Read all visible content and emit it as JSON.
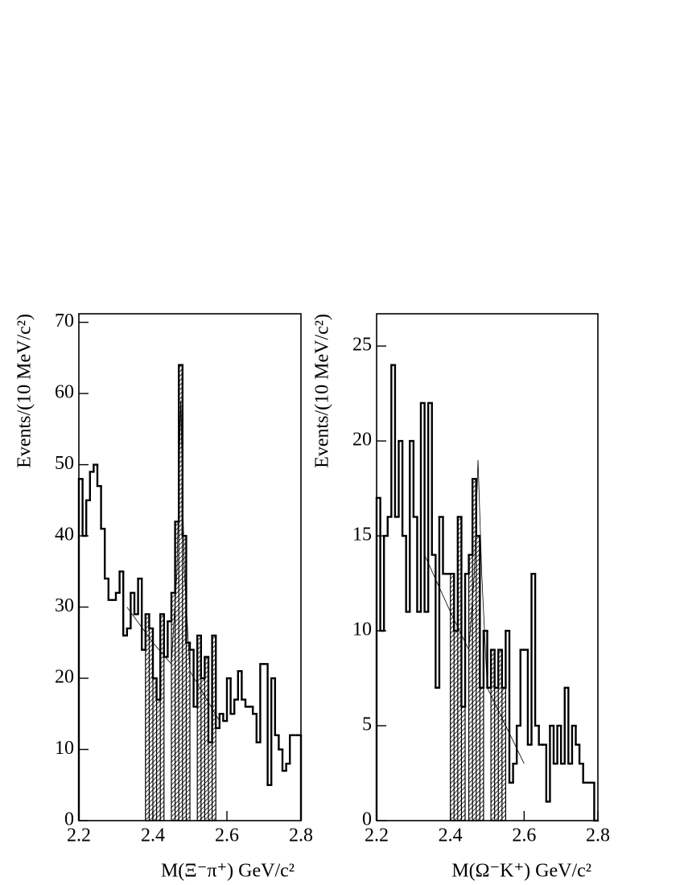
{
  "chart_data": [
    {
      "type": "histogram",
      "xlabel": "M(Ξ⁻π⁺)   GeV/c²",
      "ylabel": "Events/(10 MeV/c²)",
      "bins": [
        2.2,
        2.21,
        2.22,
        2.23,
        2.24,
        2.25,
        2.26,
        2.27,
        2.28,
        2.29,
        2.3,
        2.31,
        2.32,
        2.33,
        2.34,
        2.35,
        2.36,
        2.37,
        2.38,
        2.39,
        2.4,
        2.41,
        2.42,
        2.43,
        2.44,
        2.45,
        2.46,
        2.47,
        2.48,
        2.49,
        2.5,
        2.51,
        2.52,
        2.53,
        2.54,
        2.55,
        2.56,
        2.57,
        2.58,
        2.59,
        2.6,
        2.61,
        2.62,
        2.63,
        2.64,
        2.65,
        2.66,
        2.67,
        2.68,
        2.69,
        2.7,
        2.71,
        2.72,
        2.73,
        2.74,
        2.75,
        2.76,
        2.77,
        2.78,
        2.79,
        2.8
      ],
      "values": [
        48,
        40,
        45,
        49,
        50,
        47,
        41,
        34,
        31,
        31,
        32,
        35,
        26,
        27,
        32,
        29,
        34,
        24,
        29,
        27,
        20,
        17,
        29,
        23,
        28,
        32,
        42,
        64,
        40,
        25,
        24,
        16,
        26,
        20,
        23,
        11,
        26,
        13,
        15,
        14,
        20,
        15,
        17,
        21,
        17,
        16,
        16,
        15,
        11,
        22,
        22,
        5,
        20,
        12,
        10,
        7,
        8,
        12,
        12,
        12
      ],
      "shaded": [
        [
          2.38,
          2.43
        ],
        [
          2.45,
          2.5
        ],
        [
          2.52,
          2.57
        ]
      ],
      "fit": {
        "x": [
          2.33,
          2.4,
          2.45,
          2.465,
          2.475,
          2.485,
          2.5,
          2.58
        ],
        "values": [
          30,
          25,
          22,
          35,
          59,
          35,
          21,
          14
        ]
      },
      "xlim": [
        2.2,
        2.8
      ],
      "xticks": [
        2.2,
        2.4,
        2.6,
        2.8
      ],
      "ylim": [
        0,
        71.2
      ],
      "yticks": [
        0,
        10,
        20,
        30,
        40,
        50,
        60,
        70
      ],
      "color": "#000000"
    },
    {
      "type": "histogram",
      "xlabel": "M(Ω⁻K⁺)   GeV/c²",
      "ylabel": "Events/(10 MeV/c²)",
      "bins": [
        2.2,
        2.21,
        2.22,
        2.23,
        2.24,
        2.25,
        2.26,
        2.27,
        2.28,
        2.29,
        2.3,
        2.31,
        2.32,
        2.33,
        2.34,
        2.35,
        2.36,
        2.37,
        2.38,
        2.39,
        2.4,
        2.41,
        2.42,
        2.43,
        2.44,
        2.45,
        2.46,
        2.47,
        2.48,
        2.49,
        2.5,
        2.51,
        2.52,
        2.53,
        2.54,
        2.55,
        2.56,
        2.57,
        2.58,
        2.59,
        2.6,
        2.61,
        2.62,
        2.63,
        2.64,
        2.65,
        2.66,
        2.67,
        2.68,
        2.69,
        2.7,
        2.71,
        2.72,
        2.73,
        2.74,
        2.75,
        2.76,
        2.77,
        2.78,
        2.79,
        2.8
      ],
      "values": [
        17,
        10,
        15,
        16,
        24,
        16,
        20,
        15,
        11,
        20,
        16,
        11,
        22,
        11,
        22,
        14,
        7,
        16,
        13,
        13,
        13,
        10,
        16,
        6,
        13,
        14,
        18,
        15,
        7,
        10,
        7,
        9,
        7,
        9,
        7,
        10,
        2,
        3,
        5,
        9,
        9,
        4,
        13,
        5,
        4,
        4,
        1,
        5,
        3,
        5,
        3,
        7,
        3,
        5,
        4,
        3,
        2,
        2,
        2,
        0
      ],
      "shaded": [
        [
          2.4,
          2.44
        ],
        [
          2.45,
          2.49
        ],
        [
          2.51,
          2.55
        ]
      ],
      "fit": {
        "x": [
          2.33,
          2.4,
          2.45,
          2.465,
          2.475,
          2.485,
          2.5,
          2.6
        ],
        "values": [
          14,
          11,
          9,
          13,
          19,
          13,
          7,
          3
        ]
      },
      "xlim": [
        2.2,
        2.8
      ],
      "xticks": [
        2.2,
        2.4,
        2.6,
        2.8
      ],
      "ylim": [
        0,
        26.7
      ],
      "yticks": [
        0,
        5,
        10,
        15,
        20,
        25
      ],
      "color": "#000000"
    }
  ]
}
